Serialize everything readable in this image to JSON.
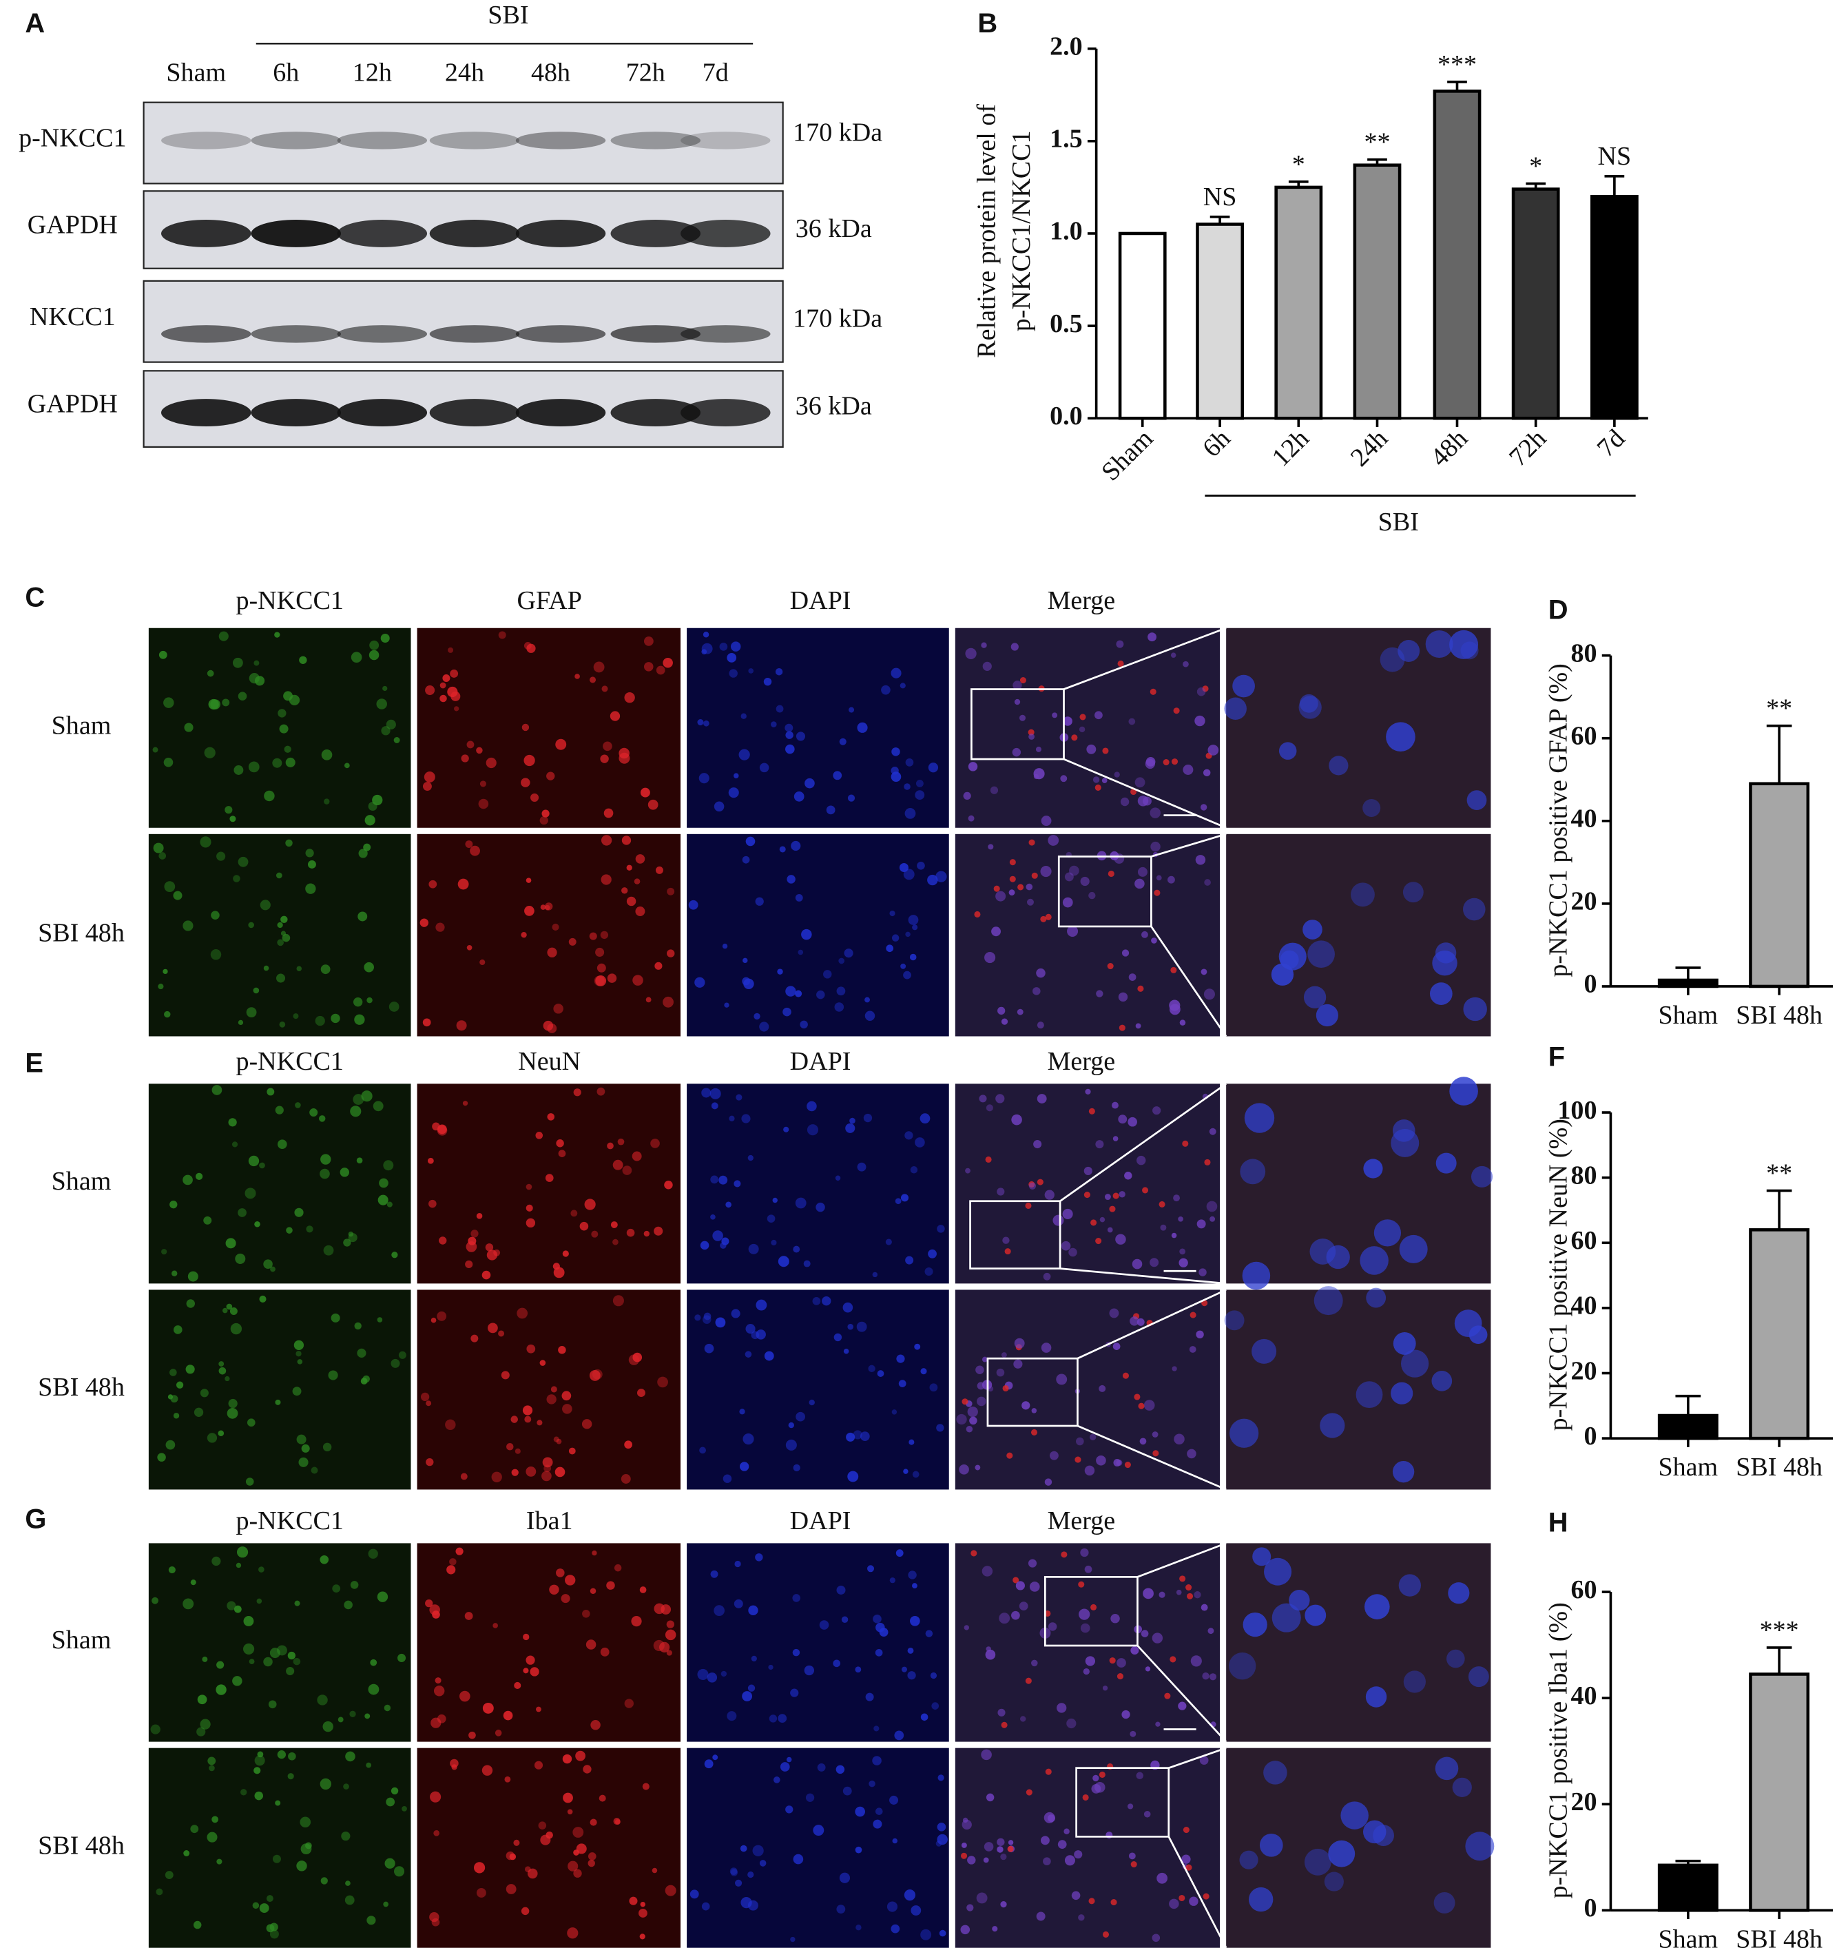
{
  "panel_labels": [
    "A",
    "B",
    "C",
    "D",
    "E",
    "F",
    "G",
    "H"
  ],
  "blot": {
    "group_label": "SBI",
    "lanes": [
      "Sham",
      "6h",
      "12h",
      "24h",
      "48h",
      "72h",
      "7d"
    ],
    "rows": [
      {
        "label": "p-NKCC1",
        "size": "170 kDa"
      },
      {
        "label": "GAPDH",
        "size": "36 kDa"
      },
      {
        "label": "NKCC1",
        "size": "170 kDa"
      },
      {
        "label": "GAPDH",
        "size": "36 kDa"
      }
    ]
  },
  "immunostaining": [
    {
      "channels": [
        {
          "name": "p-NKCC1",
          "color": "#3a8a2a"
        },
        {
          "name": "GFAP",
          "color": "#c0141c"
        },
        {
          "name": "DAPI",
          "color": "#2a6fc0"
        },
        {
          "name": "Merge",
          "color": "#6a3aa0"
        }
      ],
      "rows": [
        "Sham",
        "SBI 48h"
      ]
    },
    {
      "channels": [
        {
          "name": "p-NKCC1",
          "color": "#3a8a2a"
        },
        {
          "name": "NeuN",
          "color": "#c0141c"
        },
        {
          "name": "DAPI",
          "color": "#2a6fc0"
        },
        {
          "name": "Merge",
          "color": "#6a3aa0"
        }
      ],
      "rows": [
        "Sham",
        "SBI 48h"
      ]
    },
    {
      "channels": [
        {
          "name": "p-NKCC1",
          "color": "#3a8a2a"
        },
        {
          "name": "Iba1",
          "color": "#c0141c"
        },
        {
          "name": "DAPI",
          "color": "#2a6fc0"
        },
        {
          "name": "Merge",
          "color": "#6a3aa0"
        }
      ],
      "rows": [
        "Sham",
        "SBI 48h"
      ]
    }
  ],
  "chart_data": [
    {
      "type": "bar",
      "y_label": [
        "Relative protein level of",
        "p-NKCC1/NKCC1"
      ],
      "group_label": "SBI",
      "categories": [
        "Sham",
        "6h",
        "12h",
        "24h",
        "48h",
        "72h",
        "7d"
      ],
      "values": [
        1.0,
        1.05,
        1.25,
        1.37,
        1.77,
        1.24,
        1.2
      ],
      "errors": [
        0,
        0.04,
        0.03,
        0.03,
        0.05,
        0.03,
        0.11
      ],
      "colors": [
        "#ffffff",
        "#d9d9d9",
        "#a6a6a6",
        "#8c8c8c",
        "#666666",
        "#333333",
        "#000000"
      ],
      "annotations": [
        null,
        "NS",
        "*",
        "**",
        "***",
        "*",
        "NS"
      ],
      "ylim": [
        0,
        2
      ],
      "yticks": [
        {
          "value": 0,
          "label": "0.0"
        },
        0.5,
        {
          "value": 1,
          "label": "1.0"
        },
        1.5,
        {
          "value": 2,
          "label": "2.0"
        }
      ]
    },
    {
      "type": "bar",
      "y_label": "p-NKCC1 positive GFAP (%)",
      "categories": [
        "Sham",
        "SBI 48h"
      ],
      "values": [
        1.5,
        49
      ],
      "errors": [
        3,
        14
      ],
      "colors": [
        "#000000",
        "#a6a6a6"
      ],
      "annotations": [
        null,
        "**"
      ],
      "ylim": [
        0,
        80
      ],
      "yticks": [
        0,
        20,
        40,
        60,
        80
      ]
    },
    {
      "type": "bar",
      "y_label": "p-NKCC1 positive NeuN (%)",
      "categories": [
        "Sham",
        "SBI 48h"
      ],
      "values": [
        7,
        64
      ],
      "errors": [
        6,
        12
      ],
      "colors": [
        "#000000",
        "#a6a6a6"
      ],
      "annotations": [
        null,
        "**"
      ],
      "ylim": [
        0,
        100
      ],
      "yticks": [
        0,
        20,
        40,
        60,
        80,
        100
      ]
    },
    {
      "type": "bar",
      "y_label": "p-NKCC1 positive Iba1 (%)",
      "categories": [
        "Sham",
        "SBI 48h"
      ],
      "values": [
        8.5,
        44.5
      ],
      "errors": [
        0.8,
        5
      ],
      "colors": [
        "#000000",
        "#a6a6a6"
      ],
      "annotations": [
        null,
        "***"
      ],
      "ylim": [
        0,
        60
      ],
      "yticks": [
        0,
        20,
        40,
        60
      ]
    }
  ]
}
